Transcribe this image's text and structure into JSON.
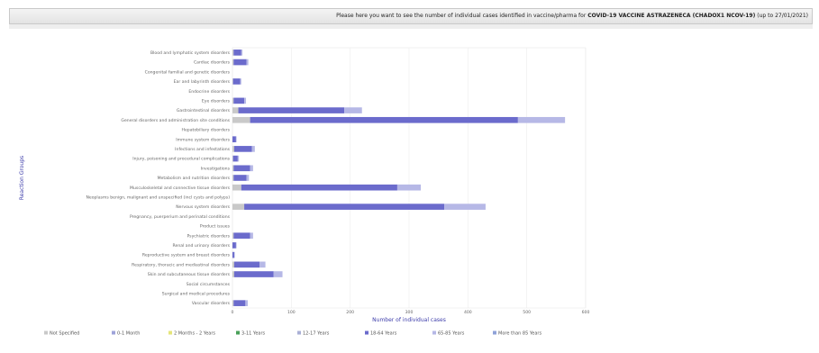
{
  "header": {
    "prefix": "Please here you want to see the number of individual cases identified in vaccine/pharma for",
    "product": "COVID-19 VACCINE ASTRAZENECA (CHADOX1 NCOV-19)",
    "suffix": "(up to 27/01/2021)"
  },
  "chart_data": {
    "type": "bar",
    "stacked": true,
    "orientation": "horizontal",
    "xlabel": "Number of individual cases",
    "ylabel": "Reaction Groups",
    "xlim": [
      0,
      600
    ],
    "xticks": [
      0,
      100,
      200,
      300,
      400,
      500,
      600
    ],
    "grid": true,
    "legend_position": "bottom",
    "categories": [
      "Blood and lymphatic system disorders",
      "Cardiac disorders",
      "Congenital familial and genetic disorders",
      "Ear and labyrinth disorders",
      "Endocrine disorders",
      "Eye disorders",
      "Gastrointestinal disorders",
      "General disorders and administration site conditions",
      "Hepatobiliary disorders",
      "Immune system disorders",
      "Infections and infestations",
      "Injury, poisoning and procedural complications",
      "Investigations",
      "Metabolism and nutrition disorders",
      "Musculoskeletal and connective tissue disorders",
      "Neoplasms benign, malignant and unspecified (incl cysts and polyps)",
      "Nervous system disorders",
      "Pregnancy, puerperium and perinatal conditions",
      "Product issues",
      "Psychiatric disorders",
      "Renal and urinary disorders",
      "Reproductive system and breast disorders",
      "Respiratory, thoracic and mediastinal disorders",
      "Skin and subcutaneous tissue disorders",
      "Social circumstances",
      "Surgical and medical procedures",
      "Vascular disorders"
    ],
    "series": [
      {
        "name": "Not Specified",
        "color": "#c9c9c9",
        "values": [
          2,
          2,
          0,
          1,
          0,
          2,
          10,
          30,
          0,
          0,
          3,
          1,
          2,
          2,
          15,
          0,
          20,
          0,
          0,
          2,
          0,
          0,
          3,
          3,
          0,
          0,
          2
        ]
      },
      {
        "name": "0-1 Month",
        "color": "#9ea3d9",
        "values": [
          0,
          0,
          0,
          0,
          0,
          0,
          0,
          0,
          0,
          0,
          0,
          0,
          0,
          0,
          0,
          0,
          0,
          0,
          0,
          0,
          0,
          0,
          0,
          0,
          0,
          0,
          0
        ]
      },
      {
        "name": "2 Months - 2 Years",
        "color": "#e5e57a",
        "values": [
          0,
          0,
          0,
          0,
          0,
          0,
          0,
          0,
          0,
          0,
          0,
          0,
          0,
          0,
          0,
          0,
          0,
          0,
          0,
          0,
          0,
          0,
          0,
          0,
          0,
          0,
          0
        ]
      },
      {
        "name": "3-11 Years",
        "color": "#4aa05a",
        "values": [
          0,
          0,
          0,
          0,
          0,
          0,
          0,
          0,
          0,
          0,
          0,
          0,
          0,
          0,
          0,
          0,
          0,
          0,
          0,
          0,
          0,
          0,
          0,
          0,
          0,
          0,
          0
        ]
      },
      {
        "name": "12-17 Years",
        "color": "#aab0d6",
        "values": [
          0,
          0,
          0,
          0,
          0,
          0,
          0,
          0,
          0,
          0,
          0,
          0,
          0,
          0,
          0,
          0,
          0,
          0,
          0,
          0,
          0,
          0,
          0,
          0,
          0,
          0,
          0
        ]
      },
      {
        "name": "18-64 Years",
        "color": "#6b6bcc",
        "values": [
          13,
          22,
          0,
          12,
          0,
          18,
          180,
          455,
          0,
          6,
          30,
          8,
          28,
          22,
          265,
          0,
          340,
          0,
          0,
          28,
          6,
          3,
          43,
          67,
          0,
          0,
          20
        ]
      },
      {
        "name": "65-85 Years",
        "color": "#b6b8e6",
        "values": [
          2,
          3,
          0,
          2,
          0,
          3,
          30,
          80,
          0,
          1,
          5,
          2,
          5,
          4,
          40,
          0,
          70,
          0,
          0,
          5,
          1,
          1,
          10,
          15,
          0,
          0,
          4
        ]
      },
      {
        "name": "More than 85 Years",
        "color": "#8fa2d8",
        "values": [
          0,
          0,
          0,
          0,
          0,
          0,
          0,
          0,
          0,
          0,
          0,
          0,
          0,
          0,
          0,
          0,
          0,
          0,
          0,
          0,
          0,
          0,
          0,
          0,
          0,
          0,
          0
        ]
      }
    ]
  }
}
